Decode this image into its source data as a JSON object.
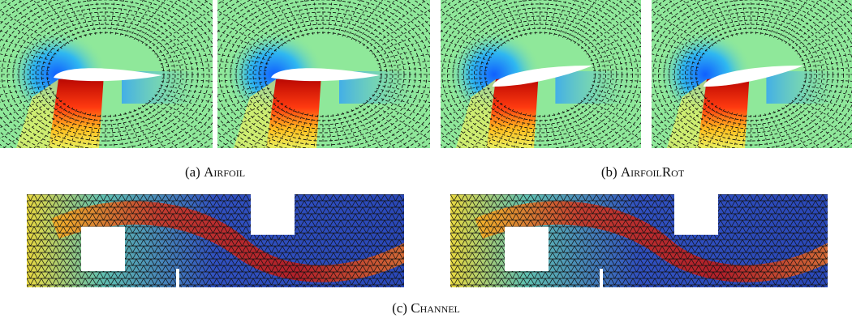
{
  "captions": [
    {
      "label": "(a)",
      "name": "Airfoil"
    },
    {
      "label": "(b)",
      "name": "AirfoilRot"
    },
    {
      "label": "(c)",
      "name": "Channel"
    }
  ]
}
